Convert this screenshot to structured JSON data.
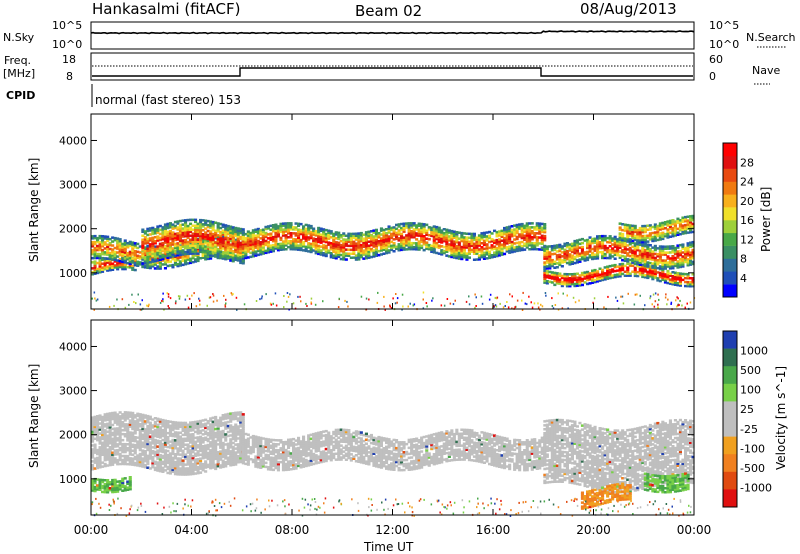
{
  "header": {
    "station": "Hankasalmi (fitACF)",
    "beam": "Beam 02",
    "date": "08/Aug/2013"
  },
  "noise_panel": {
    "left_label": "N.Sky",
    "right_label": "N.Search",
    "left_ticks": [
      "10^5",
      "10^0"
    ],
    "right_ticks": [
      "10^5",
      "10^0"
    ],
    "level_before_18h": 1000,
    "level_after_18h": 2500
  },
  "freq_panel": {
    "left_label_line1": "Freq.",
    "left_label_line2": "[MHz]",
    "left_ticks": [
      "18",
      "8"
    ],
    "right_label": "Nave",
    "right_ticks": [
      "60",
      "0"
    ],
    "cpid_label": "CPID",
    "cpid_text": "normal (fast stereo) 153"
  },
  "chart_data": [
    {
      "type": "heatmap",
      "name": "power",
      "ylabel": "Slant Range [km]",
      "yticks": [
        1000,
        2000,
        3000,
        4000
      ],
      "ylim": [
        180,
        4600
      ],
      "xlim": [
        0,
        24
      ],
      "xticks": [
        "00:00",
        "04:00",
        "08:00",
        "12:00",
        "16:00",
        "20:00",
        "00:00"
      ],
      "colorbar": {
        "label": "Power [dB]",
        "ticks": [
          "4",
          "8",
          "12",
          "16",
          "20",
          "24",
          "28"
        ],
        "colors": [
          "#0000ff",
          "#1f4fb8",
          "#2e6e9a",
          "#3a8f64",
          "#48a848",
          "#9ed03a",
          "#f0e02a",
          "#f8b01c",
          "#f07a10",
          "#e84a10",
          "#e01010",
          "#ff0000"
        ]
      },
      "bands": [
        {
          "t0": 0.0,
          "t1": 1.8,
          "r0": 950,
          "r1": 1250,
          "level": 10
        },
        {
          "t0": 0.0,
          "t1": 6.0,
          "r0": 1200,
          "r1": 1700,
          "level": 8
        },
        {
          "t0": 2.0,
          "t1": 6.0,
          "r0": 1300,
          "r1": 2100,
          "level": 9
        },
        {
          "t0": 6.0,
          "t1": 18.0,
          "r0": 1400,
          "r1": 2000,
          "level": 9
        },
        {
          "t0": 18.0,
          "t1": 24.0,
          "r0": 800,
          "r1": 1100,
          "level": 11
        },
        {
          "t0": 18.0,
          "t1": 24.0,
          "r0": 1200,
          "r1": 1700,
          "level": 9
        },
        {
          "t0": 21.0,
          "t1": 24.0,
          "r0": 1800,
          "r1": 2200,
          "level": 8
        }
      ]
    },
    {
      "type": "heatmap",
      "name": "velocity",
      "ylabel": "Slant Range [km]",
      "yticks": [
        1000,
        2000,
        3000,
        4000
      ],
      "ylim": [
        180,
        4600
      ],
      "xlim": [
        0,
        24
      ],
      "xticks": [
        "00:00",
        "04:00",
        "08:00",
        "12:00",
        "16:00",
        "20:00",
        "00:00"
      ],
      "xlabel": "Time UT",
      "colorbar": {
        "label": "Velocity [m s^-1]",
        "ticks": [
          "1000",
          "500",
          "100",
          "25",
          "-25",
          "-100",
          "-500",
          "-1000"
        ],
        "colors": [
          "#1f3fb0",
          "#2f6f50",
          "#49a84a",
          "#78d048",
          "#bfbfbf",
          "#bfbfbf",
          "#f0a020",
          "#f08020",
          "#e04a10",
          "#e01010"
        ]
      },
      "bands": [
        {
          "t0": 0.0,
          "t1": 6.0,
          "r0": 1200,
          "r1": 2400,
          "v": 0
        },
        {
          "t0": 6.0,
          "t1": 18.0,
          "r0": 1300,
          "r1": 2000,
          "v": 0
        },
        {
          "t0": 18.0,
          "t1": 24.0,
          "r0": 800,
          "r1": 2200,
          "v": 0
        },
        {
          "t0": 0.0,
          "t1": 1.6,
          "r0": 800,
          "r1": 1100,
          "v": 150
        },
        {
          "t0": 19.5,
          "t1": 21.5,
          "r0": 400,
          "r1": 800,
          "v": -200
        },
        {
          "t0": 22.0,
          "t1": 23.8,
          "r0": 800,
          "r1": 1200,
          "v": 150
        }
      ]
    }
  ]
}
